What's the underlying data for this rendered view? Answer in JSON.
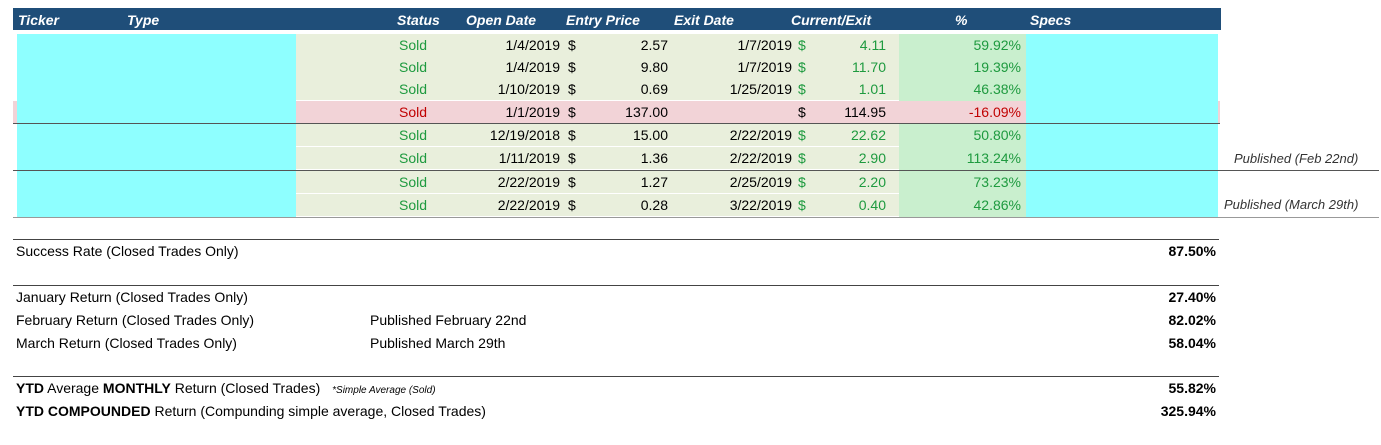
{
  "header": {
    "ticker": "Ticker",
    "type": "Type",
    "status": "Status",
    "open_date": "Open Date",
    "entry_price": "Entry Price",
    "exit_date": "Exit Date",
    "current_exit": "Current/Exit",
    "pct": "%",
    "specs": "Specs"
  },
  "trades": [
    {
      "status": "Sold",
      "open": "1/4/2019",
      "cur1": "$",
      "entry": "2.57",
      "exit": "1/7/2019",
      "cur2": "$",
      "current": "4.11",
      "pct": "59.92%"
    },
    {
      "status": "Sold",
      "open": "1/4/2019",
      "cur1": "$",
      "entry": "9.80",
      "exit": "1/7/2019",
      "cur2": "$",
      "current": "11.70",
      "pct": "19.39%"
    },
    {
      "status": "Sold",
      "open": "1/10/2019",
      "cur1": "$",
      "entry": "0.69",
      "exit": "1/25/2019",
      "cur2": "$",
      "current": "1.01",
      "pct": "46.38%"
    },
    {
      "status": "Sold",
      "open": "1/1/2019",
      "cur1": "$",
      "entry": "137.00",
      "exit": "",
      "cur2": "$",
      "current": "114.95",
      "pct": "-16.09%"
    },
    {
      "status": "Sold",
      "open": "12/19/2018",
      "cur1": "$",
      "entry": "15.00",
      "exit": "2/22/2019",
      "cur2": "$",
      "current": "22.62",
      "pct": "50.80%"
    },
    {
      "status": "Sold",
      "open": "1/11/2019",
      "cur1": "$",
      "entry": "1.36",
      "exit": "2/22/2019",
      "cur2": "$",
      "current": "2.90",
      "pct": "113.24%"
    },
    {
      "status": "Sold",
      "open": "2/22/2019",
      "cur1": "$",
      "entry": "1.27",
      "exit": "2/25/2019",
      "cur2": "$",
      "current": "2.20",
      "pct": "73.23%"
    },
    {
      "status": "Sold",
      "open": "2/22/2019",
      "cur1": "$",
      "entry": "0.28",
      "exit": "3/22/2019",
      "cur2": "$",
      "current": "0.40",
      "pct": "42.86%"
    }
  ],
  "notes": {
    "feb": "Published (Feb 22nd)",
    "mar": "Published (March 29th)"
  },
  "summary": {
    "success_label": "Success Rate (Closed Trades Only)",
    "success_value": "87.50%",
    "jan_label": "January Return (Closed Trades Only)",
    "jan_value": "27.40%",
    "feb_label": "February Return (Closed Trades Only)",
    "feb_note": "Published February 22nd",
    "feb_value": "82.02%",
    "mar_label": "March Return (Closed Trades Only)",
    "mar_note": "Published March 29th",
    "mar_value": "58.04%",
    "ytd_avg_b1": "YTD",
    "ytd_avg_t1": " Average ",
    "ytd_avg_b2": "MONTHLY",
    "ytd_avg_t2": " Return (Closed Trades)",
    "ytd_avg_note": "*Simple Average (Sold)",
    "ytd_avg_value": "55.82%",
    "ytd_comp_b": "YTD COMPOUNDED",
    "ytd_comp_t": " Return (Compunding simple average, Closed Trades)",
    "ytd_comp_value": "325.94%"
  },
  "colors": {
    "header_bg": "#1f4e79",
    "row_bg": "#e9efdc",
    "loss_row_bg": "#f2d3d7",
    "pct_bg": "#c9efce",
    "cyan_redaction": "#8effff",
    "gain_text": "#1e9a3f",
    "loss_text": "#c00000"
  }
}
